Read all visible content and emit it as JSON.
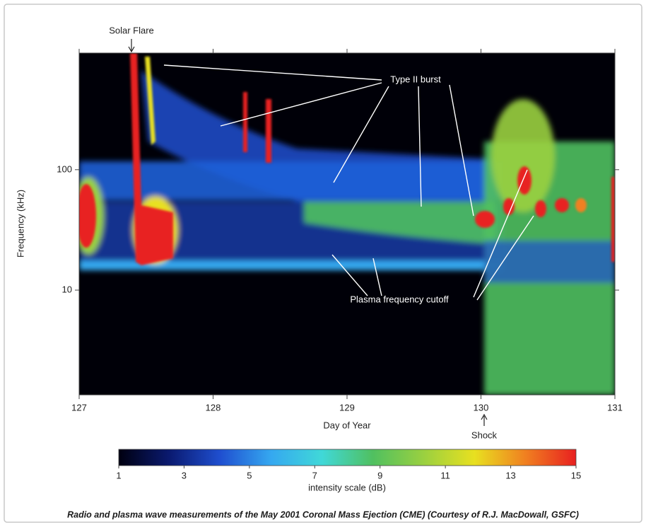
{
  "chart_data": {
    "type": "spectrogram",
    "x_label": "Day of Year",
    "y_label": "Frequency (kHz)",
    "xlim": [
      127,
      131
    ],
    "xticks": [
      127,
      128,
      129,
      130,
      131
    ],
    "ylim": [
      1.35,
      930
    ],
    "yticks": [
      10,
      100
    ],
    "y_log": true,
    "annotations": [
      "Solar Flare",
      "Type II burst",
      "Plasma frequency cutoff",
      "Shock"
    ],
    "colorbar": {
      "label": "intensity scale (dB)",
      "lim": [
        1,
        15
      ],
      "ticks": [
        1,
        3,
        5,
        7,
        9,
        11,
        13,
        15
      ],
      "colors": [
        "#000010",
        "#0a1a70",
        "#1f4fd0",
        "#35a8f0",
        "#40d8d8",
        "#50c060",
        "#9ad040",
        "#e8e020",
        "#f08020",
        "#e82020"
      ]
    },
    "caption": "Radio and plasma wave measurements of the May 2001 Coronal Mass Ejection (CME) (Courtesy of R.J. MacDowall, GSFC)"
  }
}
